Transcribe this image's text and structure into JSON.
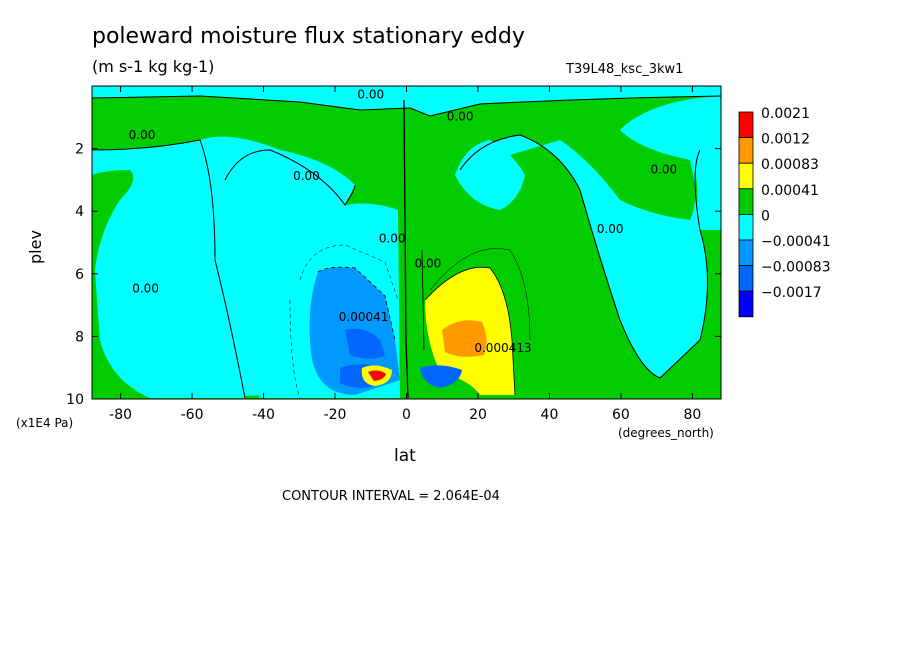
{
  "chart_data": {
    "type": "contour",
    "title": "poleward moisture flux stationary eddy",
    "subtitle": "(m s-1 kg kg-1)",
    "run_label": "T39L48_ksc_3kw1",
    "xlabel": "lat",
    "ylabel": "plev",
    "x_units_label": "(degrees_north)",
    "y_units_label": "(x1E4 Pa)",
    "xlim": [
      -88,
      88
    ],
    "ylim": [
      10,
      0
    ],
    "x_ticks": [
      "-80",
      "-60",
      "-40",
      "-20",
      "0",
      "20",
      "40",
      "60",
      "80"
    ],
    "x_tick_values": [
      -80,
      -60,
      -40,
      -20,
      0,
      20,
      40,
      60,
      80
    ],
    "y_ticks": [
      "2",
      "4",
      "6",
      "8",
      "10"
    ],
    "y_tick_values": [
      2,
      4,
      6,
      8,
      10
    ],
    "contour_interval_text": "CONTOUR INTERVAL = 2.064E-04",
    "legend": [
      {
        "label": "0.0021",
        "color": "#ff0000"
      },
      {
        "label": "0.0012",
        "color": "#ff9900"
      },
      {
        "label": "0.00083",
        "color": "#ffff00"
      },
      {
        "label": "0.00041",
        "color": "#00cc00"
      },
      {
        "label": "0",
        "color": "#00ffff"
      },
      {
        "label": "−0.00041",
        "color": "#0099ff"
      },
      {
        "label": "−0.00083",
        "color": "#0066ff"
      },
      {
        "label": "−0.0017",
        "color": ""
      }
    ],
    "contour_labels": [
      {
        "text": "0.00",
        "lat": -10,
        "plev": 0.4
      },
      {
        "text": "0.00",
        "lat": 15,
        "plev": 1.1
      },
      {
        "text": "0.00",
        "lat": -74,
        "plev": 1.7
      },
      {
        "text": "0.00",
        "lat": -28,
        "plev": 3.0
      },
      {
        "text": "0.00",
        "lat": 72,
        "plev": 2.8
      },
      {
        "text": "0.00",
        "lat": 57,
        "plev": 4.7
      },
      {
        "text": "0.00",
        "lat": -4,
        "plev": 5.0
      },
      {
        "text": "0.00",
        "lat": 6,
        "plev": 5.8
      },
      {
        "text": "0.00",
        "lat": -73,
        "plev": 6.6
      },
      {
        "text": "0.00041",
        "lat": -12,
        "plev": 7.5
      },
      {
        "text": "0.000413",
        "lat": 27,
        "plev": 8.5
      }
    ]
  }
}
